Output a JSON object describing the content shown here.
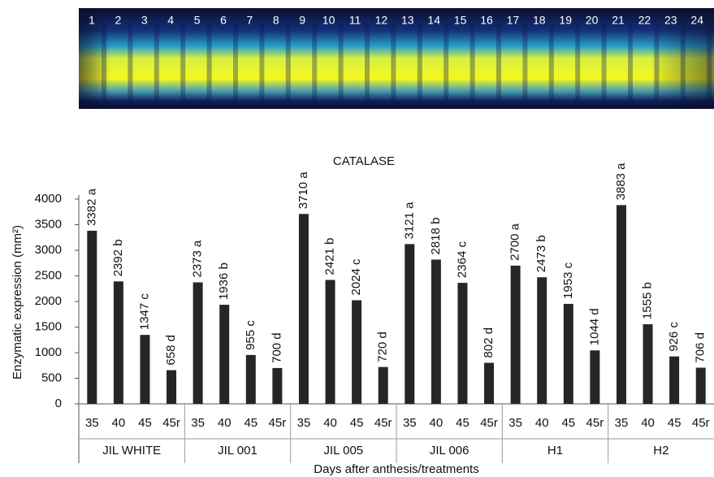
{
  "gel": {
    "lane_labels": [
      "1",
      "2",
      "3",
      "4",
      "5",
      "6",
      "7",
      "8",
      "9",
      "10",
      "11",
      "12",
      "13",
      "14",
      "15",
      "16",
      "17",
      "18",
      "19",
      "20",
      "21",
      "22",
      "23",
      "24"
    ]
  },
  "chart_data": {
    "type": "bar",
    "title": "CATALASE",
    "y_label": "Enzymatic expression (mm²)",
    "x_label": "Days after anthesis/treatments",
    "groups": [
      "JIL WHITE",
      "JIL 001",
      "JIL 005",
      "JIL 006",
      "H1",
      "H2"
    ],
    "categories": [
      "35",
      "40",
      "45",
      "45r",
      "35",
      "40",
      "45",
      "45r",
      "35",
      "40",
      "45",
      "45r",
      "35",
      "40",
      "45",
      "45r",
      "35",
      "40",
      "45",
      "45r",
      "35",
      "40",
      "45",
      "45r"
    ],
    "values": [
      3382,
      2392,
      1347,
      658,
      2373,
      1936,
      955,
      700,
      3710,
      2421,
      2024,
      720,
      3121,
      2818,
      2364,
      802,
      2700,
      2473,
      1953,
      1044,
      3883,
      1555,
      926,
      706
    ],
    "value_labels": [
      "3382 a",
      "2392 b",
      "1347 c",
      "658 d",
      "2373 a",
      "1936 b",
      "955 c",
      "700 d",
      "3710 a",
      "2421 b",
      "2024 c",
      "720 d",
      "3121 a",
      "2818 b",
      "2364 c",
      "802 d",
      "2700 a",
      "2473 b",
      "1953 c",
      "1044 d",
      "3883 a",
      "1555 b",
      "926 c",
      "706 d"
    ],
    "color": "#262626",
    "ylim": [
      0,
      4000
    ],
    "yticks": [
      0,
      500,
      1000,
      1500,
      2000,
      2500,
      3000,
      3500,
      4000
    ],
    "grid": false
  }
}
